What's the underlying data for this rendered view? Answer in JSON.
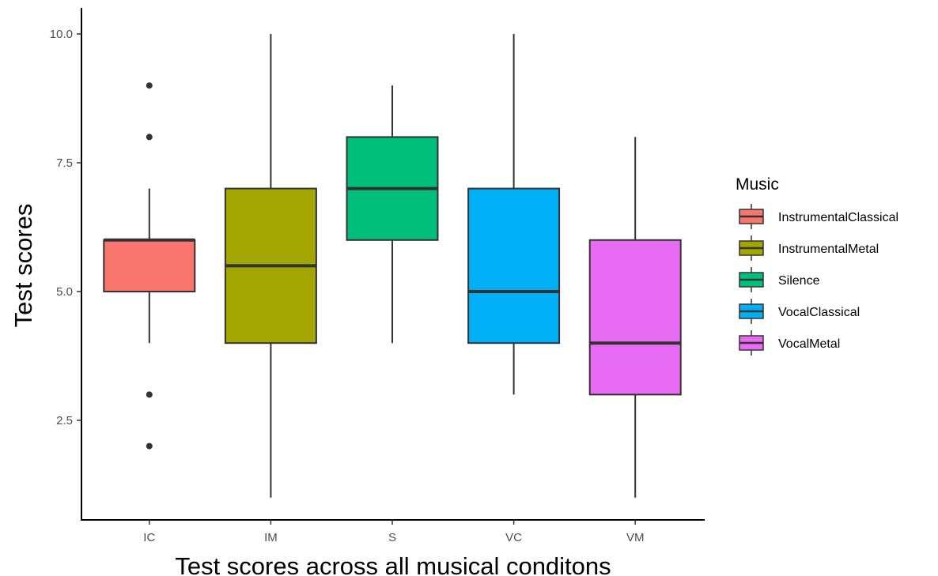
{
  "chart_data": {
    "type": "boxplot",
    "xlabel": "Test scores across all musical conditons",
    "ylabel": "Test scores",
    "ylim": [
      0.9,
      10.4
    ],
    "y_ticks": [
      2.5,
      5.0,
      7.5,
      10.0
    ],
    "y_tick_labels": [
      "2.5",
      "5.0",
      "7.5",
      "10.0"
    ],
    "grid": false,
    "legend": {
      "title": "Music",
      "position": "right"
    },
    "categories": [
      "IC",
      "IM",
      "S",
      "VC",
      "VM"
    ],
    "series": [
      {
        "category": "IC",
        "name": "InstrumentalClassical",
        "color": "#F8766D",
        "lower_whisker": 4,
        "q1": 5,
        "median": 6,
        "q3": 6,
        "upper_whisker": 7,
        "outliers": [
          2,
          3,
          8,
          9
        ]
      },
      {
        "category": "IM",
        "name": "InstrumentalMetal",
        "color": "#A3A500",
        "lower_whisker": 1,
        "q1": 4,
        "median": 5.5,
        "q3": 7,
        "upper_whisker": 10,
        "outliers": []
      },
      {
        "category": "S",
        "name": "Silence",
        "color": "#00BF7D",
        "lower_whisker": 4,
        "q1": 6,
        "median": 7,
        "q3": 8,
        "upper_whisker": 9,
        "outliers": []
      },
      {
        "category": "VC",
        "name": "VocalClassical",
        "color": "#00B0F6",
        "lower_whisker": 3,
        "q1": 4,
        "median": 5,
        "q3": 7,
        "upper_whisker": 10,
        "outliers": []
      },
      {
        "category": "VM",
        "name": "VocalMetal",
        "color": "#E76BF3",
        "lower_whisker": 1,
        "q1": 3,
        "median": 4,
        "q3": 6,
        "upper_whisker": 8,
        "outliers": []
      }
    ]
  }
}
